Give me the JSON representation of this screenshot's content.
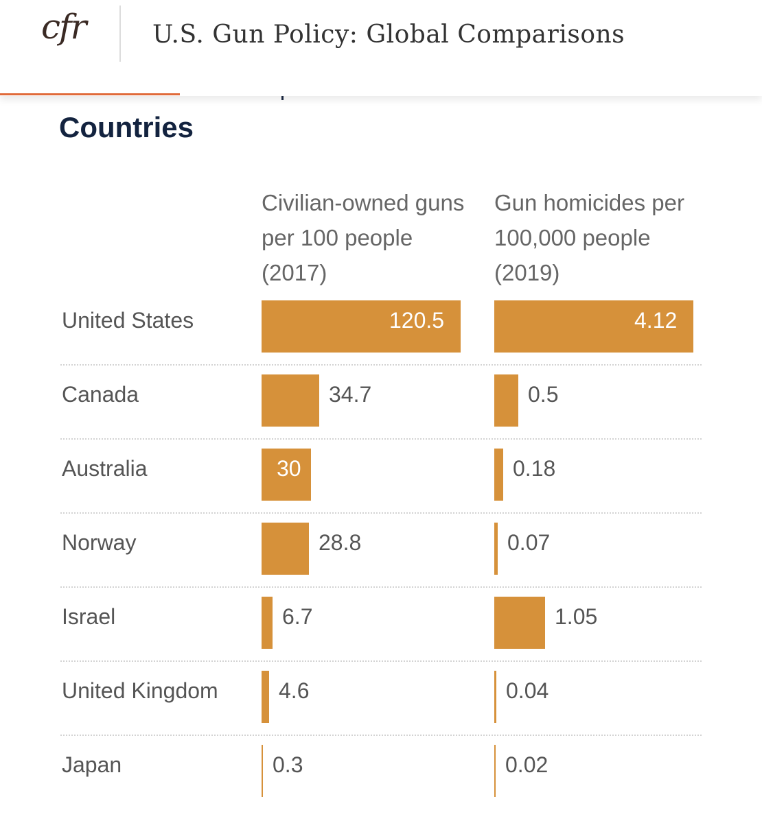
{
  "header": {
    "logo": "cfr",
    "title": "U.S. Gun Policy: Global Comparisons"
  },
  "section": {
    "title": "Countries"
  },
  "columns": {
    "guns": "Civilian-owned guns per 100 people (2017)",
    "homicides": "Gun homicides per 100,000 people (2019)"
  },
  "colors": {
    "bar": "#d6913a",
    "progress": "#e06a3a",
    "title": "#13233f"
  },
  "chart_data": {
    "type": "bar",
    "categories": [
      "United States",
      "Canada",
      "Australia",
      "Norway",
      "Israel",
      "United Kingdom",
      "Japan"
    ],
    "series": [
      {
        "name": "Civilian-owned guns per 100 people (2017)",
        "values": [
          120.5,
          34.7,
          30,
          28.8,
          6.7,
          4.6,
          0.3
        ],
        "labels": [
          "120.5",
          "34.7",
          "30",
          "28.8",
          "6.7",
          "4.6",
          "0.3"
        ]
      },
      {
        "name": "Gun homicides per 100,000 people (2019)",
        "values": [
          4.12,
          0.5,
          0.18,
          0.07,
          1.05,
          0.04,
          0.02
        ],
        "labels": [
          "4.12",
          "0.5",
          "0.18",
          "0.07",
          "1.05",
          "0.04",
          "0.02"
        ]
      }
    ]
  }
}
